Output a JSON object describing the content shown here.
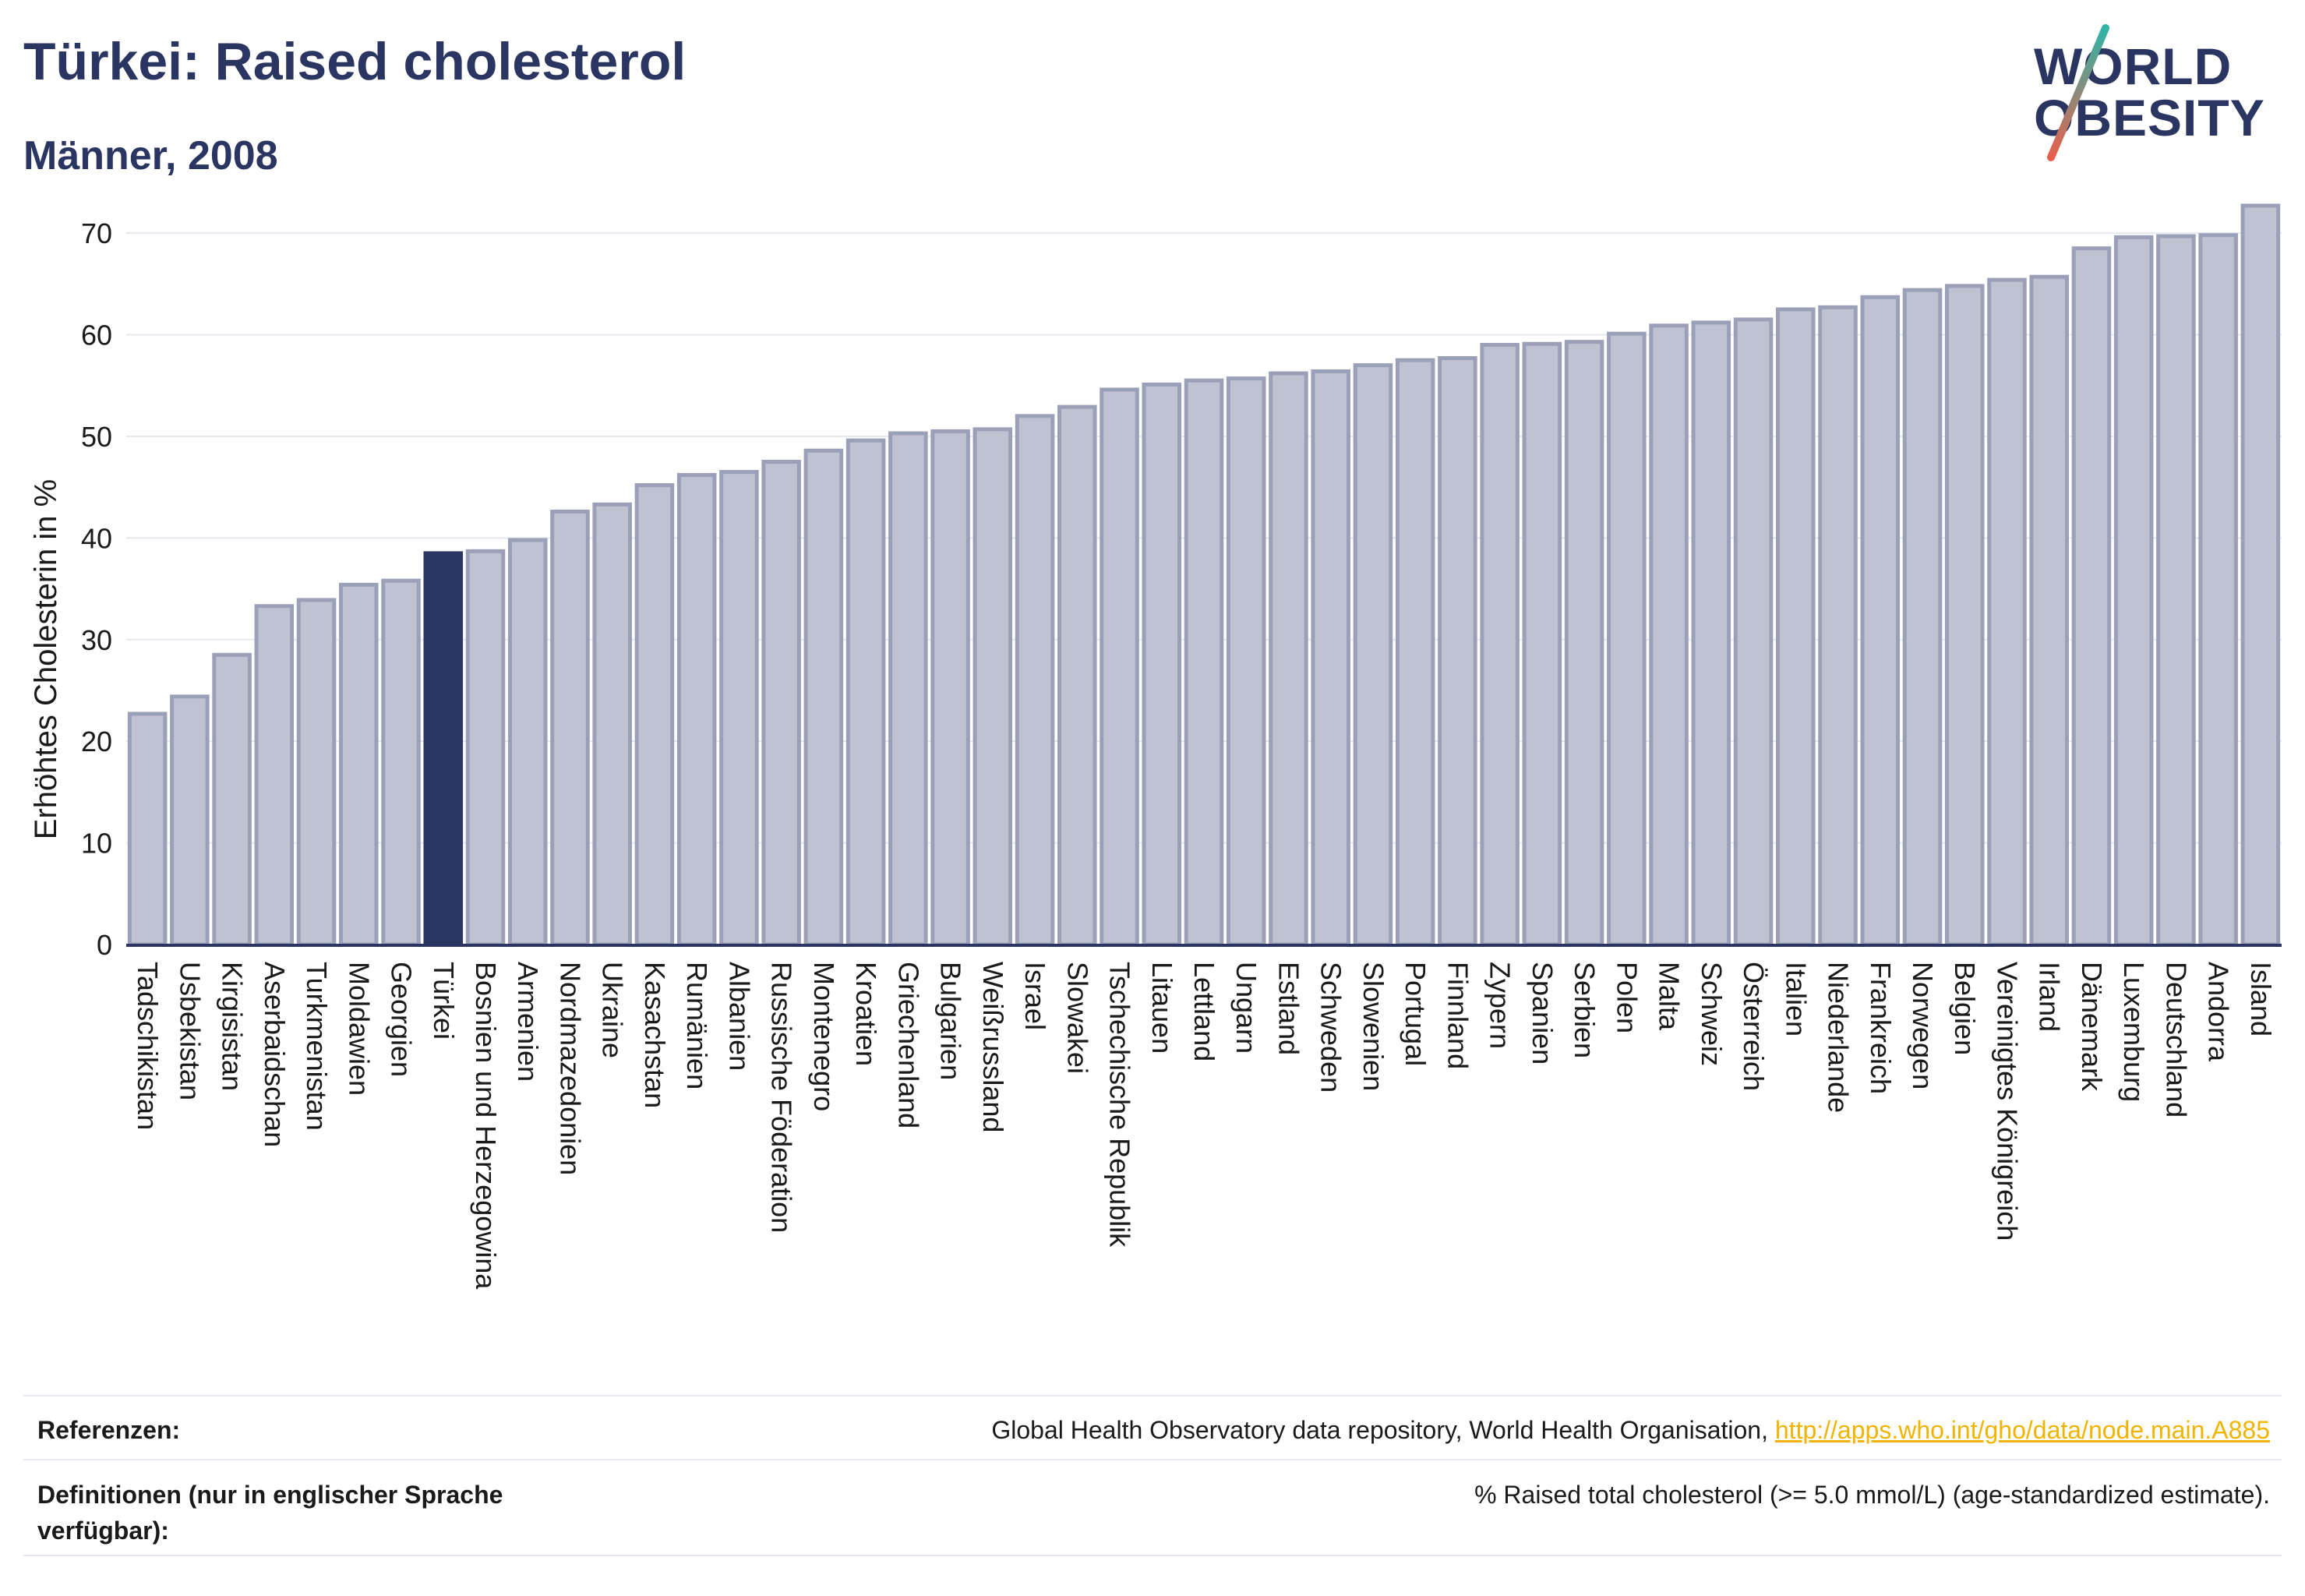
{
  "header": {
    "title": "Türkei: Raised cholesterol",
    "subtitle": "Männer, 2008"
  },
  "logo": {
    "line1": "WORLD",
    "line2": "OBESITY"
  },
  "chart_data": {
    "type": "bar",
    "ylabel": "Erhöhtes Cholesterin in %",
    "xlabel": "",
    "ylim": [
      0,
      73
    ],
    "yticks": [
      0,
      10,
      20,
      30,
      40,
      50,
      60,
      70
    ],
    "highlight": "Türkei",
    "colors": {
      "bar": "#bfc2d1",
      "bar_border": "#9aa0b8",
      "highlight": "#2b3561",
      "axis": "#2b3561",
      "grid": "#e6e8ef"
    },
    "categories": [
      "Tadschikistan",
      "Usbekistan",
      "Kirgisistan",
      "Aserbaidschan",
      "Turkmenistan",
      "Moldawien",
      "Georgien",
      "Türkei",
      "Bosnien und Herzegowina",
      "Armenien",
      "Nordmazedonien",
      "Ukraine",
      "Kasachstan",
      "Rumänien",
      "Albanien",
      "Russische Föderation",
      "Montenegro",
      "Kroatien",
      "Griechenland",
      "Bulgarien",
      "Weißrussland",
      "Israel",
      "Slowakei",
      "Tschechische Republik",
      "Litauen",
      "Lettland",
      "Ungarn",
      "Estland",
      "Schweden",
      "Slowenien",
      "Portugal",
      "Finnland",
      "Zypern",
      "Spanien",
      "Serbien",
      "Polen",
      "Malta",
      "Schweiz",
      "Österreich",
      "Italien",
      "Niederlande",
      "Frankreich",
      "Norwegen",
      "Belgien",
      "Vereinigtes Königreich",
      "Irland",
      "Dänemark",
      "Luxemburg",
      "Deutschland",
      "Andorra",
      "Island"
    ],
    "values": [
      22.7,
      24.4,
      28.5,
      33.3,
      33.9,
      35.4,
      35.8,
      38.5,
      38.7,
      39.8,
      42.6,
      43.3,
      45.2,
      46.2,
      46.5,
      47.5,
      48.6,
      49.6,
      50.3,
      50.5,
      50.7,
      52.0,
      52.9,
      54.6,
      55.1,
      55.5,
      55.7,
      56.2,
      56.4,
      57.0,
      57.5,
      57.7,
      59.0,
      59.1,
      59.3,
      60.1,
      60.9,
      61.2,
      61.5,
      62.5,
      62.7,
      63.7,
      64.4,
      64.8,
      65.4,
      65.7,
      68.5,
      69.6,
      69.7,
      69.8,
      72.7
    ]
  },
  "footer": {
    "references_label": "Referenzen:",
    "references_text": "Global Health Observatory data repository, World Health Organisation, ",
    "references_link": "http://apps.who.int/gho/data/node.main.A885",
    "definitions_label": "Definitionen (nur in englischer Sprache verfügbar):",
    "definitions_text": "% Raised total cholesterol (>= 5.0 mmol/L) (age-standardized estimate)."
  }
}
